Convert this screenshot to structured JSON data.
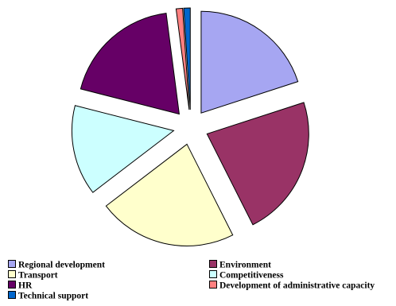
{
  "chart_data": {
    "type": "pie",
    "exploded": true,
    "title": "",
    "slices": [
      {
        "label": "Regional development",
        "value": 19.5,
        "color": "#a6a6f2"
      },
      {
        "label": "Environment",
        "value": 22.0,
        "color": "#993366"
      },
      {
        "label": "Transport",
        "value": 21.5,
        "color": "#ffffcc"
      },
      {
        "label": "Competitiveness",
        "value": 14.0,
        "color": "#ccffff"
      },
      {
        "label": "HR",
        "value": 18.5,
        "color": "#660066"
      },
      {
        "label": "Development of administrative capacity",
        "value": 1.0,
        "color": "#ff8080"
      },
      {
        "label": "Technical support",
        "value": 1.0,
        "color": "#0066cc"
      }
    ],
    "legend_position": "bottom",
    "legend_columns": 2
  }
}
